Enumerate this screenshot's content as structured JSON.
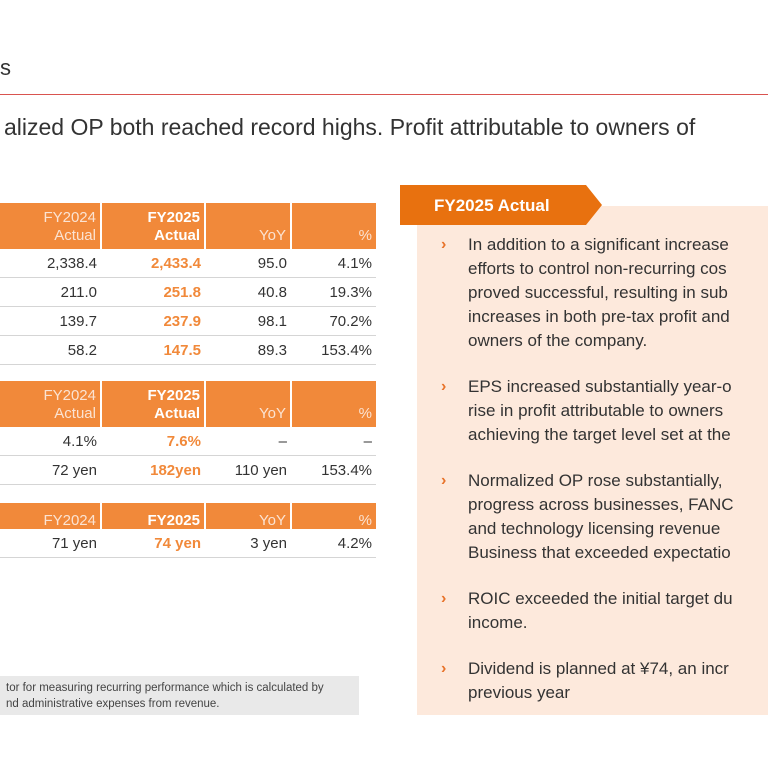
{
  "page": {
    "title_fragment": "s",
    "headline": "alized OP both reached record highs. Profit attributable to owners of"
  },
  "table1": {
    "headers": {
      "fy2024": [
        "FY2024",
        "Actual"
      ],
      "fy2025": [
        "FY2025",
        "Actual"
      ],
      "yoy": "YoY",
      "pct": "%"
    },
    "rows": [
      {
        "fy2024": "2,338.4",
        "fy2025": "2,433.4",
        "yoy": "95.0",
        "pct": "4.1%"
      },
      {
        "fy2024": "211.0",
        "fy2025": "251.8",
        "yoy": "40.8",
        "pct": "19.3%"
      },
      {
        "fy2024": "139.7",
        "fy2025": "237.9",
        "yoy": "98.1",
        "pct": "70.2%"
      },
      {
        "fy2024": "58.2",
        "fy2025": "147.5",
        "yoy": "89.3",
        "pct": "153.4%"
      }
    ]
  },
  "table2": {
    "headers": {
      "fy2024": [
        "FY2024",
        "Actual"
      ],
      "fy2025": [
        "FY2025",
        "Actual"
      ],
      "yoy": "YoY",
      "pct": "%"
    },
    "rows": [
      {
        "fy2024": "4.1%",
        "fy2025": "7.6%",
        "yoy": "–",
        "pct": "–"
      },
      {
        "fy2024": "72 yen",
        "fy2025": "182yen",
        "yoy": "110 yen",
        "pct": "153.4%"
      }
    ]
  },
  "table3": {
    "headers": {
      "fy2024": "FY2024",
      "fy2025": "FY2025",
      "yoy": "YoY",
      "pct": "%"
    },
    "rows": [
      {
        "fy2024": "71 yen",
        "fy2025": "74 yen",
        "yoy": "3 yen",
        "pct": "4.2%"
      }
    ]
  },
  "footnote": {
    "line1": "tor for measuring recurring performance which is calculated by",
    "line2": "nd administrative expenses from revenue."
  },
  "panel": {
    "tab_label": "FY2025 Actual",
    "bullets": [
      [
        "In addition to a significant increase",
        "efforts to control non-recurring cos",
        "proved successful, resulting in sub",
        "increases in both pre-tax profit and",
        "owners of the company."
      ],
      [
        "EPS increased substantially year-o",
        "rise in profit attributable to owners",
        "achieving the target level set at the"
      ],
      [
        "Normalized OP rose substantially,",
        "progress across businesses, FANC",
        "and technology licensing revenue",
        "Business that exceeded expectatio"
      ],
      [
        "ROIC exceeded the initial target du",
        "income."
      ],
      [
        "Dividend is planned at ¥74, an incr",
        "previous year"
      ]
    ]
  },
  "colors": {
    "accent": "#f1893a",
    "panel_bg": "#fde9dc",
    "tab": "#e8710f",
    "rule": "#d9534f"
  }
}
